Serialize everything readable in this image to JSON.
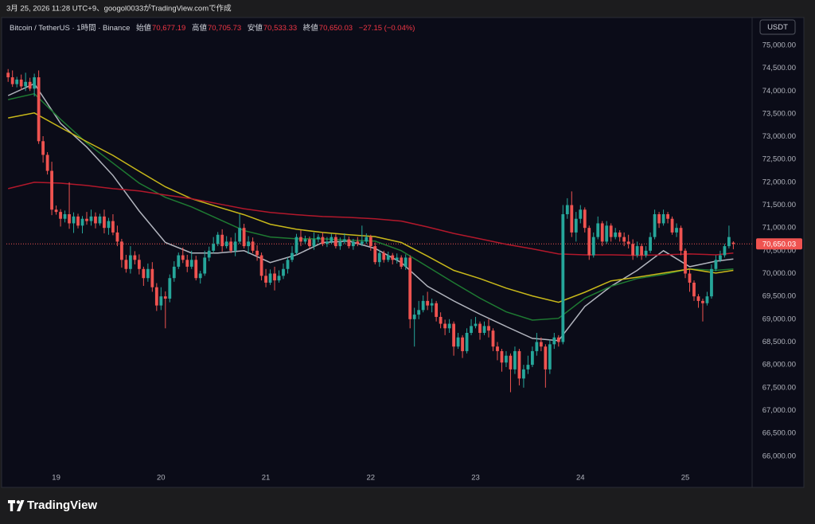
{
  "header": {
    "caption": "3月 25, 2026 11:28 UTC+9、googol0033がTradingView.comで作成"
  },
  "footer": {
    "brand": "TradingView"
  },
  "chart_data": {
    "type": "candlestick",
    "title": "Bitcoin / TetherUS · 1時間 · Binance",
    "legend": {
      "open_label": "始値",
      "open": "70,677.19",
      "high_label": "高値",
      "high": "70,705.73",
      "low_label": "安値",
      "low": "70,533.33",
      "close_label": "終値",
      "close": "70,650.03",
      "change": "−27.15 (−0.04%)"
    },
    "currency": "USDT",
    "last_price": {
      "value": 70650.03,
      "label": "70,650.03"
    },
    "up_color": "#26a69a",
    "down_color": "#ef5350",
    "grid": false,
    "xlim": [
      -0.4,
      170.3
    ],
    "ylim": [
      65350,
      75470
    ],
    "xticks": [
      {
        "value": 11,
        "label": "19"
      },
      {
        "value": 35,
        "label": "20"
      },
      {
        "value": 59,
        "label": "21"
      },
      {
        "value": 83,
        "label": "22"
      },
      {
        "value": 107,
        "label": "23"
      },
      {
        "value": 131,
        "label": "24"
      },
      {
        "value": 155,
        "label": "25"
      }
    ],
    "yticks": [
      {
        "value": 66000,
        "label": "66,000.00"
      },
      {
        "value": 66500,
        "label": "66,500.00"
      },
      {
        "value": 67000,
        "label": "67,000.00"
      },
      {
        "value": 67500,
        "label": "67,500.00"
      },
      {
        "value": 68000,
        "label": "68,000.00"
      },
      {
        "value": 68500,
        "label": "68,500.00"
      },
      {
        "value": 69000,
        "label": "69,000.00"
      },
      {
        "value": 69500,
        "label": "69,500.00"
      },
      {
        "value": 70000,
        "label": "70,000.00"
      },
      {
        "value": 70500,
        "label": "70,500.00"
      },
      {
        "value": 71000,
        "label": "71,000.00"
      },
      {
        "value": 71500,
        "label": "71,500.00"
      },
      {
        "value": 72000,
        "label": "72,000.00"
      },
      {
        "value": 72500,
        "label": "72,500.00"
      },
      {
        "value": 73000,
        "label": "73,000.00"
      },
      {
        "value": 73500,
        "label": "73,500.00"
      },
      {
        "value": 74000,
        "label": "74,000.00"
      },
      {
        "value": 74500,
        "label": "74,500.00"
      },
      {
        "value": 75000,
        "label": "75,000.00"
      }
    ],
    "open": [
      74400,
      74300,
      74150,
      74250,
      74100,
      74200,
      74050,
      74300,
      72900,
      72600,
      72250,
      71400,
      71350,
      71200,
      71300,
      71100,
      71250,
      71050,
      71200,
      71150,
      71250,
      71100,
      71250,
      71000,
      71150,
      70900,
      70700,
      70300,
      70100,
      70400,
      70300,
      70100,
      69900,
      70100,
      69700,
      69300,
      69500,
      69450,
      69900,
      70150,
      70400,
      70300,
      70150,
      70300,
      69900,
      70000,
      70350,
      70500,
      70650,
      70850,
      70600,
      70700,
      70500,
      70700,
      71000,
      70600,
      70700,
      70500,
      70400,
      69950,
      69800,
      70000,
      69850,
      69950,
      70100,
      70300,
      70450,
      70800,
      70700,
      70750,
      70600,
      70750,
      70800,
      70650,
      70700,
      70800,
      70600,
      70700,
      70750,
      70600,
      70700,
      70650,
      70700,
      70800,
      70600,
      70250,
      70450,
      70300,
      70400,
      70300,
      70350,
      70150,
      70350,
      69000,
      69100,
      69200,
      69400,
      69300,
      69350,
      69050,
      68900,
      68800,
      68900,
      68400,
      68600,
      68300,
      68700,
      68850,
      68900,
      68700,
      68850,
      68750,
      68400,
      68300,
      68050,
      68200,
      67900,
      68300,
      67700,
      67900,
      68000,
      68300,
      68500,
      68400,
      67900,
      68450,
      68600,
      68500,
      71300,
      71500,
      70900,
      71200,
      71400,
      71000,
      70400,
      70800,
      71100,
      70700,
      71050,
      70800,
      70900,
      70800,
      70700,
      70650,
      70400,
      70600,
      70400,
      70500,
      70800,
      71300,
      71100,
      71300,
      71200,
      70900,
      71000,
      70500,
      70000,
      69800,
      69500,
      69400,
      69350,
      69500,
      70100,
      70300,
      70400,
      70600,
      70677.19
    ],
    "high": [
      74480,
      74450,
      74310,
      74360,
      74400,
      74290,
      74380,
      74450,
      73010,
      72660,
      72450,
      71490,
      71410,
      71380,
      72000,
      71340,
      71310,
      71260,
      71350,
      71400,
      71340,
      71310,
      71400,
      71220,
      71300,
      71050,
      70760,
      70410,
      70600,
      70490,
      70420,
      70150,
      70220,
      70250,
      69790,
      69700,
      69610,
      69980,
      70270,
      70460,
      70570,
      70410,
      70500,
      70390,
      70060,
      70500,
      70590,
      70800,
      70910,
      70970,
      70820,
      70790,
      70890,
      71300,
      71090,
      70820,
      70790,
      70620,
      70460,
      70100,
      70090,
      70150,
      70070,
      70220,
      70350,
      70600,
      70870,
      70950,
      70830,
      70810,
      70900,
      70860,
      70900,
      70800,
      70870,
      70860,
      70790,
      70880,
      70810,
      70760,
      70800,
      71050,
      70880,
      70850,
      70680,
      70520,
      70500,
      70480,
      70450,
      70440,
      70400,
      70420,
      70400,
      69250,
      69400,
      69520,
      69600,
      69450,
      69400,
      69150,
      68990,
      69000,
      68950,
      68700,
      68650,
      68800,
      69000,
      69050,
      68950,
      68950,
      69000,
      68800,
      68500,
      68350,
      68300,
      68250,
      68400,
      68350,
      68000,
      68200,
      68400,
      68700,
      68600,
      68450,
      68550,
      68700,
      68650,
      71500,
      71650,
      71800,
      71350,
      71500,
      71450,
      71050,
      70900,
      71250,
      71150,
      71150,
      71100,
      71000,
      70950,
      70900,
      70850,
      70750,
      70700,
      70650,
      70600,
      70900,
      71400,
      71350,
      71400,
      71350,
      71250,
      71100,
      71050,
      70550,
      70100,
      69850,
      69550,
      69450,
      69600,
      70200,
      70400,
      70500,
      70650,
      71050,
      70705.73
    ],
    "low": [
      74200,
      74090,
      74080,
      74020,
      74000,
      74000,
      73880,
      72840,
      72430,
      72170,
      71280,
      71290,
      71030,
      71120,
      70980,
      70890,
      70990,
      70880,
      71070,
      71050,
      70990,
      71050,
      70880,
      70850,
      70840,
      70600,
      70130,
      70020,
      70000,
      70200,
      69980,
      69730,
      69820,
      69600,
      69180,
      69200,
      68800,
      69370,
      69820,
      70100,
      70230,
      70030,
      70100,
      69850,
      69780,
      69950,
      70270,
      70450,
      70600,
      70480,
      70550,
      70450,
      70380,
      70650,
      70550,
      70430,
      70450,
      70280,
      69850,
      69700,
      69750,
      69630,
      69800,
      69880,
      70000,
      70250,
      70400,
      70600,
      70650,
      70550,
      70520,
      70680,
      70600,
      70580,
      70650,
      70550,
      70520,
      70650,
      70550,
      70520,
      70600,
      70600,
      70650,
      70500,
      70200,
      70150,
      70240,
      70250,
      70200,
      70220,
      70100,
      70080,
      68800,
      68400,
      69000,
      69150,
      69200,
      69150,
      68950,
      68800,
      68650,
      68700,
      68200,
      68350,
      68150,
      68250,
      68650,
      68800,
      68550,
      68650,
      68600,
      68300,
      68100,
      67850,
      67950,
      67400,
      67800,
      67550,
      67500,
      67800,
      67950,
      68200,
      68300,
      67500,
      67800,
      68350,
      68400,
      68450,
      71200,
      70800,
      70700,
      71100,
      70900,
      70300,
      70350,
      70750,
      70600,
      70650,
      70700,
      70750,
      70700,
      70600,
      70550,
      70300,
      70350,
      70300,
      70350,
      70450,
      70750,
      71000,
      71050,
      71100,
      70850,
      70800,
      70400,
      69900,
      69600,
      69400,
      69250,
      68950,
      69300,
      69450,
      70050,
      70250,
      70350,
      70550,
      70533.33
    ],
    "close": [
      74300,
      74150,
      74250,
      74100,
      74200,
      74050,
      74300,
      72900,
      72600,
      72250,
      71400,
      71350,
      71200,
      71300,
      71100,
      71250,
      71050,
      71200,
      71150,
      71250,
      71100,
      71250,
      71000,
      71150,
      70900,
      70700,
      70300,
      70100,
      70400,
      70300,
      70100,
      69900,
      70100,
      69700,
      69300,
      69500,
      69450,
      69900,
      70150,
      70400,
      70300,
      70150,
      70300,
      69900,
      70000,
      70350,
      70500,
      70650,
      70850,
      70600,
      70700,
      70500,
      70700,
      71000,
      70600,
      70700,
      70500,
      70400,
      69950,
      69800,
      70000,
      69850,
      69950,
      70100,
      70300,
      70450,
      70800,
      70700,
      70750,
      70600,
      70750,
      70800,
      70650,
      70700,
      70800,
      70600,
      70700,
      70750,
      70600,
      70700,
      70650,
      70700,
      70800,
      70600,
      70250,
      70450,
      70300,
      70400,
      70300,
      70350,
      70150,
      70350,
      69000,
      69100,
      69200,
      69400,
      69300,
      69350,
      69050,
      68900,
      68800,
      68900,
      68400,
      68600,
      68300,
      68700,
      68850,
      68900,
      68700,
      68850,
      68750,
      68400,
      68300,
      68050,
      68200,
      67900,
      68300,
      67700,
      67900,
      68000,
      68300,
      68500,
      68400,
      67900,
      68450,
      68600,
      68500,
      71300,
      71500,
      70900,
      71200,
      71400,
      71000,
      70400,
      70800,
      71100,
      70700,
      71050,
      70800,
      70900,
      70800,
      70700,
      70650,
      70400,
      70600,
      70400,
      70500,
      70800,
      71300,
      71100,
      71300,
      71200,
      70900,
      71000,
      70500,
      70000,
      69800,
      69500,
      69400,
      69350,
      69500,
      70100,
      70300,
      70400,
      70600,
      70800,
      70650.03
    ],
    "ma_x": [
      0,
      6,
      12,
      18,
      24,
      30,
      36,
      42,
      48,
      54,
      60,
      66,
      72,
      78,
      84,
      90,
      96,
      102,
      108,
      114,
      120,
      126,
      132,
      138,
      144,
      150,
      156,
      162,
      166
    ],
    "ma_series": [
      {
        "color": "#b2b5be",
        "values": [
          73900,
          74160,
          73290,
          72770,
          72150,
          71370,
          70680,
          70450,
          70450,
          70500,
          70240,
          70410,
          70680,
          70710,
          70550,
          70240,
          69720,
          69400,
          69110,
          68840,
          68580,
          68530,
          69280,
          69720,
          70070,
          70500,
          70150,
          70270,
          70320
        ]
      },
      {
        "color": "#1e7a32",
        "values": [
          73810,
          73940,
          73380,
          72860,
          72420,
          71980,
          71670,
          71460,
          71200,
          70940,
          70800,
          70760,
          70760,
          70730,
          70710,
          70500,
          70150,
          69800,
          69460,
          69160,
          68980,
          69020,
          69460,
          69720,
          69890,
          69980,
          70100,
          70070,
          70100
        ]
      },
      {
        "color": "#c8b81a",
        "values": [
          73410,
          73520,
          73200,
          72890,
          72590,
          72240,
          71900,
          71640,
          71460,
          71290,
          71080,
          70970,
          70900,
          70850,
          70810,
          70680,
          70380,
          70070,
          69890,
          69680,
          69510,
          69370,
          69590,
          69840,
          69920,
          70010,
          70100,
          70010,
          70070
        ]
      },
      {
        "color": "#b2182b",
        "values": [
          71860,
          72000,
          71980,
          71930,
          71860,
          71810,
          71720,
          71640,
          71530,
          71420,
          71340,
          71290,
          71250,
          71230,
          71200,
          71150,
          71020,
          70880,
          70760,
          70640,
          70540,
          70430,
          70410,
          70410,
          70400,
          70410,
          70430,
          70410,
          70450
        ]
      }
    ]
  }
}
